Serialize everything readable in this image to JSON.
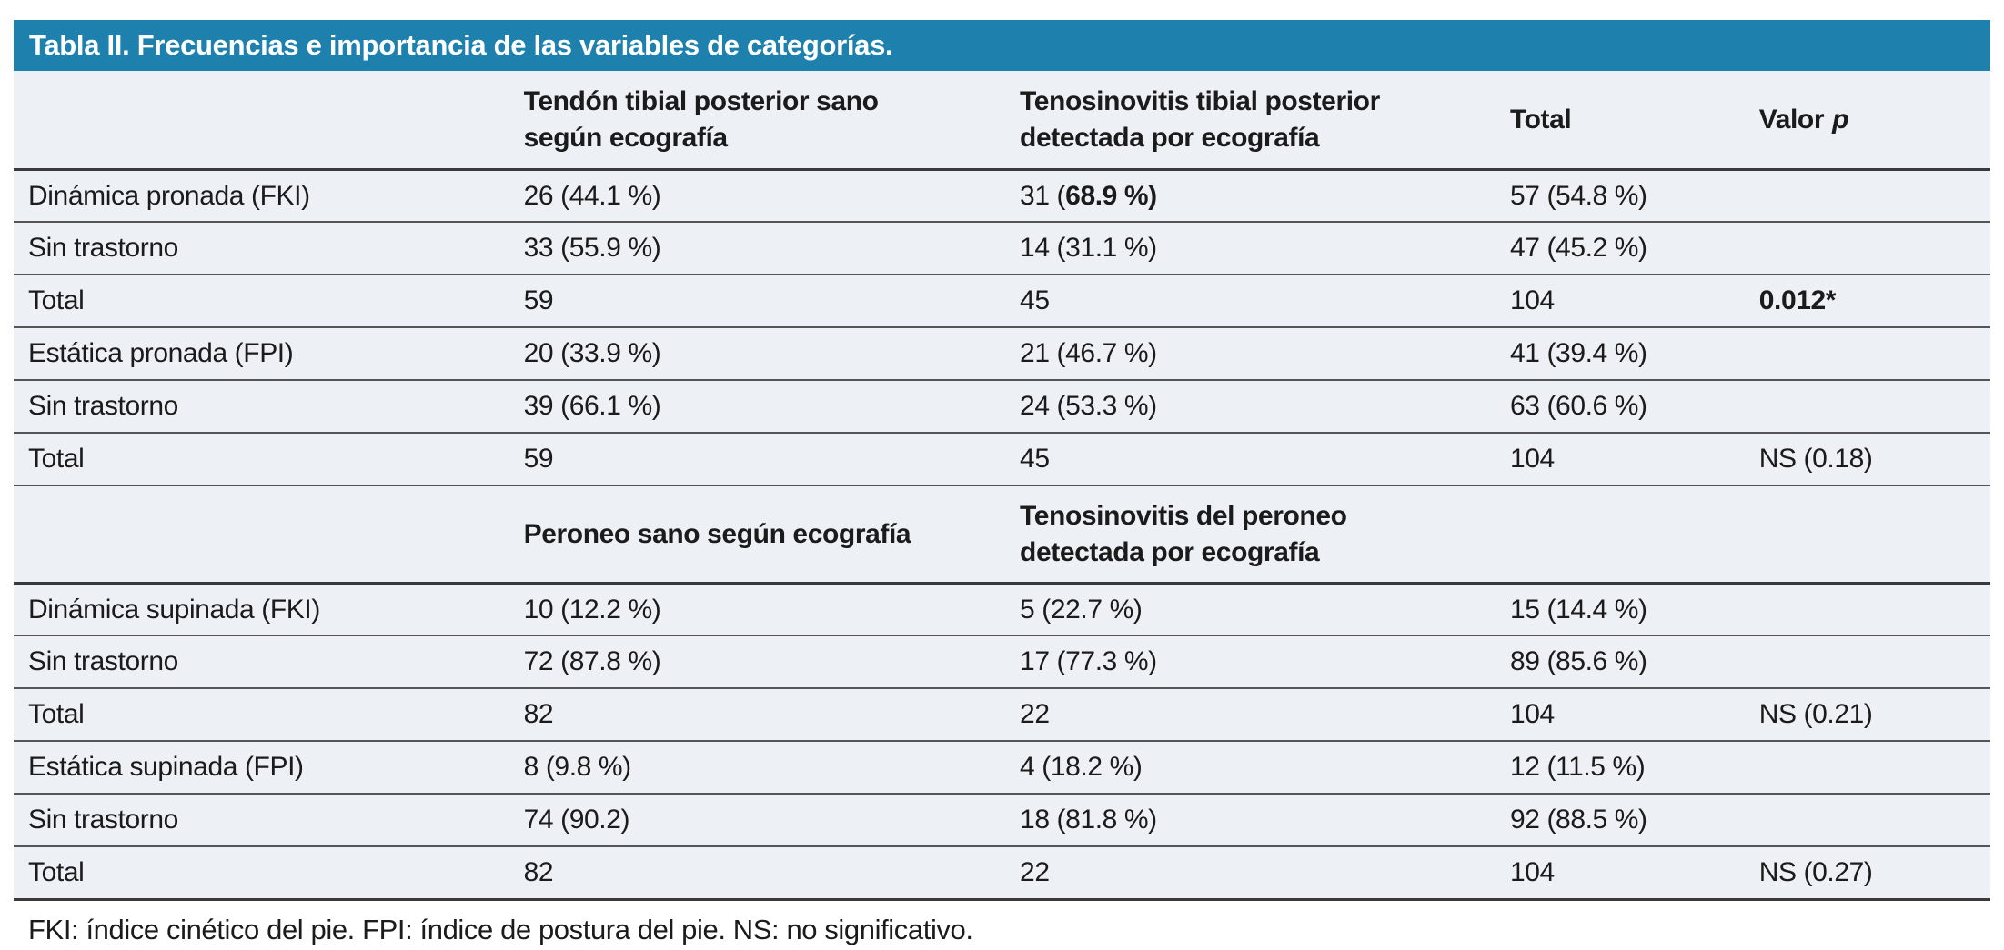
{
  "title": "Tabla II. Frecuencias e importancia de las variables de categorías.",
  "colors": {
    "title_bar_blue": "#1e81ad",
    "row_background": "#edf1f6",
    "title_text": "#ffffff"
  },
  "section1": {
    "headers": {
      "col2": "Tendón tibial posterior sano\nsegún ecografía",
      "col3": "Tenosinovitis tibial posterior\ndetectada por ecografía",
      "col4": "Total",
      "col5_word": "Valor",
      "col5_p": "p"
    },
    "rows": [
      {
        "label": "Dinámica pronada (FKI)",
        "c2": "26 (44.1 %)",
        "c3_prefix": "31 (",
        "c3_bold": "68.9 %)",
        "c4": "57 (54.8 %)",
        "c5": ""
      },
      {
        "label": "Sin trastorno",
        "c2": "33 (55.9 %)",
        "c3": "14 (31.1 %)",
        "c4": "47 (45.2 %)",
        "c5": ""
      },
      {
        "label": "Total",
        "c2": "59",
        "c3": "45",
        "c4": "104",
        "c5": "0.012*"
      },
      {
        "label": "Estática pronada (FPI)",
        "c2": "20 (33.9 %)",
        "c3": "21 (46.7 %)",
        "c4": "41 (39.4 %)",
        "c5": ""
      },
      {
        "label": "Sin trastorno",
        "c2": "39 (66.1 %)",
        "c3": "24 (53.3 %)",
        "c4": "63 (60.6 %)",
        "c5": ""
      },
      {
        "label": "Total",
        "c2": "59",
        "c3": "45",
        "c4": "104",
        "c5": "NS (0.18)"
      }
    ]
  },
  "section2": {
    "headers": {
      "col2": "Peroneo sano según ecografía",
      "col3": "Tenosinovitis del peroneo\ndetectada por ecografía"
    },
    "rows": [
      {
        "label": "Dinámica supinada (FKI)",
        "c2": "10 (12.2 %)",
        "c3": "5 (22.7 %)",
        "c4": "15 (14.4 %)",
        "c5": ""
      },
      {
        "label": "Sin trastorno",
        "c2": "72 (87.8 %)",
        "c3": "17 (77.3 %)",
        "c4": "89 (85.6 %)",
        "c5": ""
      },
      {
        "label": "Total",
        "c2": "82",
        "c3": "22",
        "c4": "104",
        "c5": "NS (0.21)"
      },
      {
        "label": "Estática supinada (FPI)",
        "c2": "8 (9.8 %)",
        "c3": "4 (18.2 %)",
        "c4": "12 (11.5 %)",
        "c5": ""
      },
      {
        "label": "Sin trastorno",
        "c2": "74 (90.2)",
        "c3": "18 (81.8 %)",
        "c4": "92 (88.5 %)",
        "c5": ""
      },
      {
        "label": "Total",
        "c2": "82",
        "c3": "22",
        "c4": "104",
        "c5": "NS (0.27)"
      }
    ]
  },
  "footnote": "FKI: índice cinético del pie. FPI: índice de postura del pie. NS: no significativo."
}
